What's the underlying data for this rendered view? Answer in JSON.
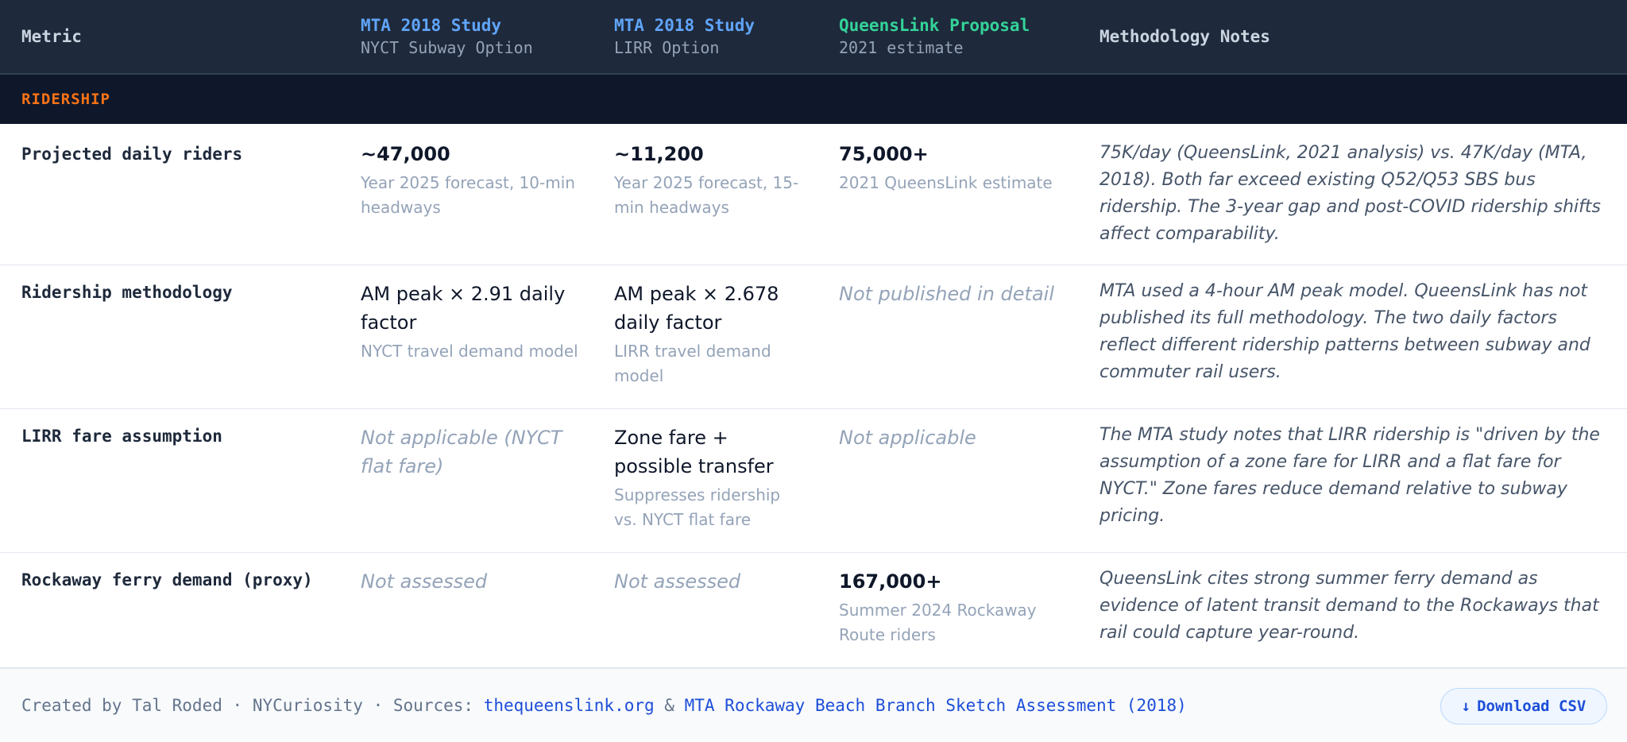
{
  "header": {
    "metric": "Metric",
    "columns": [
      {
        "title": "MTA 2018 Study",
        "subtitle": "NYCT Subway Option"
      },
      {
        "title": "MTA 2018 Study",
        "subtitle": "LIRR Option"
      },
      {
        "title": "QueensLink Proposal",
        "subtitle": "2021 estimate"
      }
    ],
    "notes": "Methodology Notes"
  },
  "section": {
    "label": "RIDERSHIP"
  },
  "rows": [
    {
      "metric": "Projected daily riders",
      "c1": {
        "value": "~47,000",
        "sub": "Year 2025 forecast, 10-min headways"
      },
      "c2": {
        "value": "~11,200",
        "sub": "Year 2025 forecast, 15-min headways"
      },
      "c3": {
        "value": "75,000+",
        "sub": "2021 QueensLink estimate"
      },
      "notes": "75K/day (QueensLink, 2021 analysis) vs. 47K/day (MTA, 2018). Both far exceed existing Q52/Q53 SBS bus ridership. The 3-year gap and post-COVID ridership shifts affect comparability."
    },
    {
      "metric": "Ridership methodology",
      "c1": {
        "value": "AM peak × 2.91 daily factor",
        "sub": "NYCT travel demand model"
      },
      "c2": {
        "value": "AM peak × 2.678 daily factor",
        "sub": "LIRR travel demand model"
      },
      "c3": {
        "value": "Not published in detail"
      },
      "notes": "MTA used a 4-hour AM peak model. QueensLink has not published its full methodology. The two daily factors reflect different ridership patterns between subway and commuter rail users."
    },
    {
      "metric": "LIRR fare assumption",
      "c1": {
        "value": "Not applicable (NYCT flat fare)"
      },
      "c2": {
        "value": "Zone fare + possible transfer",
        "sub": "Suppresses ridership vs. NYCT flat fare"
      },
      "c3": {
        "value": "Not applicable"
      },
      "notes": "The MTA study notes that LIRR ridership is \"driven by the assumption of a zone fare for LIRR and a flat fare for NYCT.\" Zone fares reduce demand relative to subway pricing."
    },
    {
      "metric": "Rockaway ferry demand (proxy)",
      "c1": {
        "value": "Not assessed"
      },
      "c2": {
        "value": "Not assessed"
      },
      "c3": {
        "value": "167,000+",
        "sub": "Summer 2024 Rockaway Route riders"
      },
      "notes": "QueensLink cites strong summer ferry demand as evidence of latent transit demand to the Rockaways that rail could capture year-round."
    }
  ],
  "footer": {
    "created": "Created by Tal Roded",
    "sep": "·",
    "org": "NYCuriosity",
    "sources_label": "Sources:",
    "link1": "thequeenslink.org",
    "amp": "&",
    "link2": "MTA Rockaway Beach Branch Sketch Assessment (2018)",
    "download_label": "Download CSV",
    "download_icon": "↓"
  },
  "colors": {
    "header_bg": "#1e293b",
    "section_bg": "#0f172a",
    "section_label": "#f97316",
    "mta_title": "#60a5fa",
    "queenslink_title": "#34d399",
    "link": "#1d4ed8"
  }
}
